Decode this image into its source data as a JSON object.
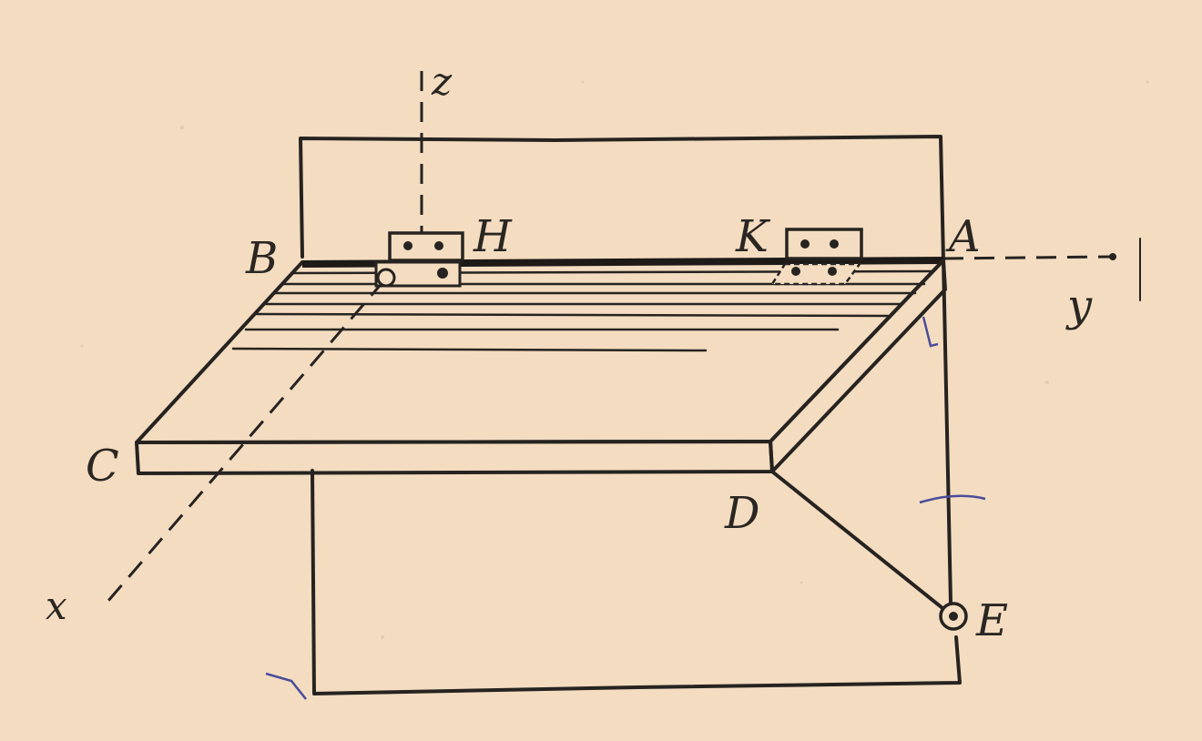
{
  "figure": {
    "paper_color": "#f3dcc0",
    "ink_color": "#262320",
    "pen_color": "#4a4c9a",
    "points": {
      "A": "A",
      "B": "B",
      "C": "C",
      "D": "D",
      "E": "E",
      "H": "H",
      "K": "K"
    },
    "axes": {
      "x": "x",
      "y": "y",
      "z": "z"
    },
    "icons": {
      "hinge_h": "hinge-icon",
      "hinge_k": "hinge-icon",
      "hook_e": "eyelet-icon"
    }
  }
}
